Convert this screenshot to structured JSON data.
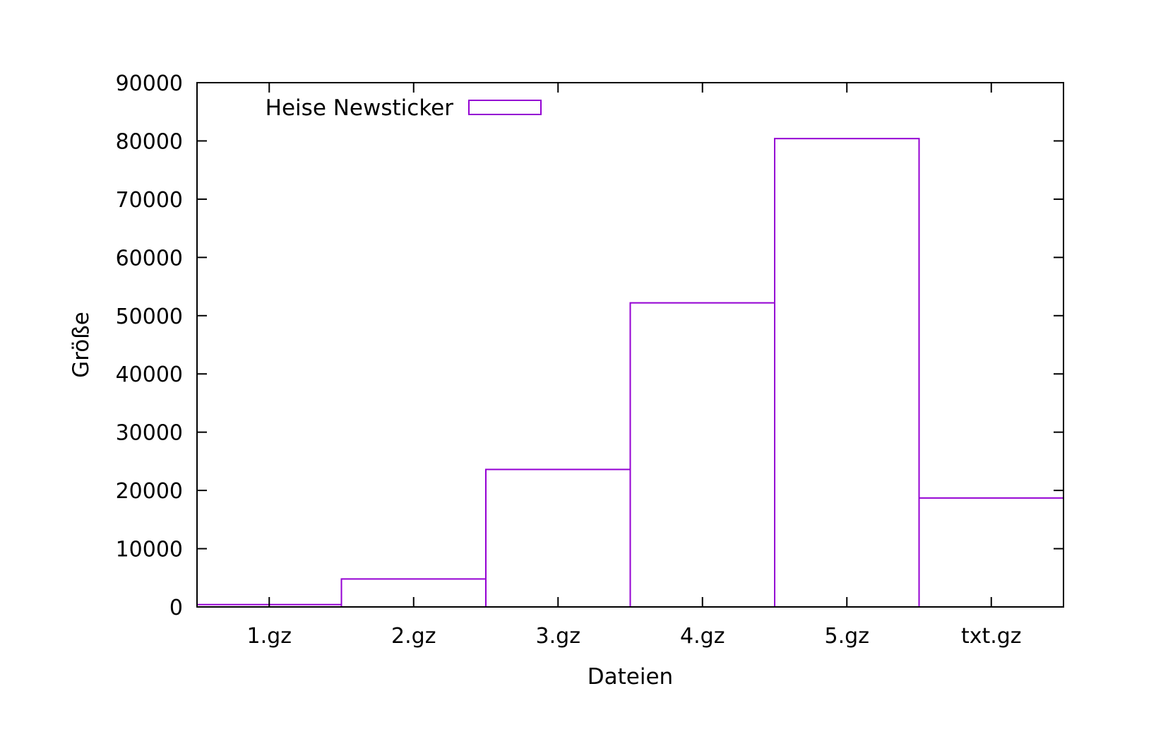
{
  "colors": {
    "series": "#9400d3",
    "axis": "#000000",
    "background": "#ffffff"
  },
  "chart_data": {
    "type": "bar",
    "title": "",
    "xlabel": "Dateien",
    "ylabel": "Größe",
    "categories": [
      "1.gz",
      "2.gz",
      "3.gz",
      "4.gz",
      "5.gz",
      "txt.gz"
    ],
    "series": [
      {
        "name": "Heise Newsticker",
        "values": [
          400,
          4800,
          23600,
          52200,
          80400,
          18700
        ],
        "fill": "none"
      }
    ],
    "ylim": [
      0,
      90000
    ],
    "yticks": [
      0,
      10000,
      20000,
      30000,
      40000,
      50000,
      60000,
      70000,
      80000,
      90000
    ],
    "ytick_labels": [
      "0",
      "10000",
      "20000",
      "30000",
      "40000",
      "50000",
      "60000",
      "70000",
      "80000",
      "90000"
    ],
    "grid": false,
    "legend_position": "top-left"
  }
}
